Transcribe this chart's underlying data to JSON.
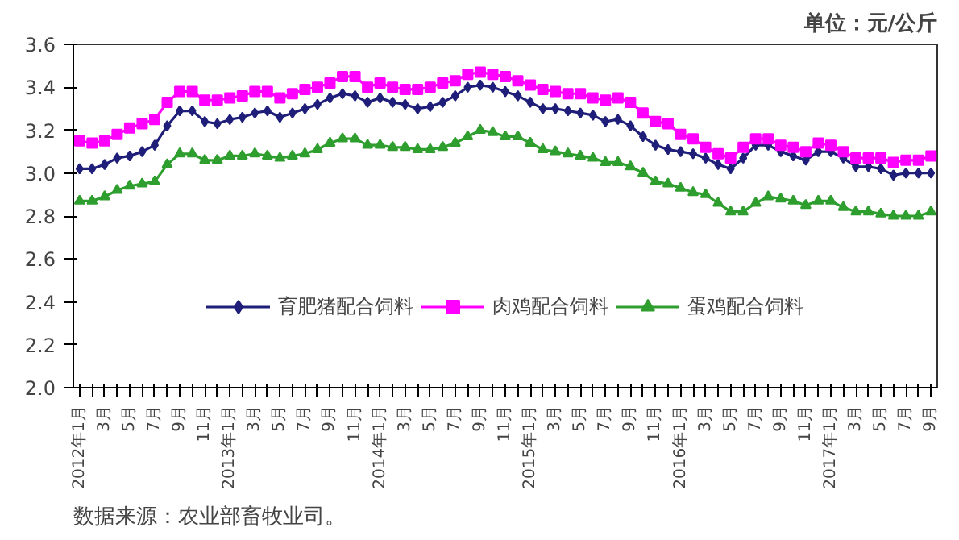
{
  "chart_data": {
    "type": "line",
    "categories": [
      "2012年1月",
      null,
      "3月",
      null,
      "5月",
      null,
      "7月",
      null,
      "9月",
      null,
      "11月",
      null,
      "2013年1月",
      null,
      "3月",
      null,
      "5月",
      null,
      "7月",
      null,
      "9月",
      null,
      "11月",
      null,
      "2014年1月",
      null,
      "3月",
      null,
      "5月",
      null,
      "7月",
      null,
      "9月",
      null,
      "11月",
      null,
      "2015年1月",
      null,
      "3月",
      null,
      "5月",
      null,
      "7月",
      null,
      "9月",
      null,
      "11月",
      null,
      "2016年1月",
      null,
      "3月",
      null,
      "5月",
      null,
      "7月",
      null,
      "9月",
      null,
      "11月",
      null,
      "2017年1月",
      null,
      "3月",
      null,
      "5月",
      null,
      "7月",
      null,
      "9月"
    ],
    "series": [
      {
        "name": "育肥猪配合饲料",
        "color": "#1f1f7a",
        "marker": "diamond",
        "values": [
          3.02,
          3.02,
          3.04,
          3.07,
          3.08,
          3.1,
          3.13,
          3.22,
          3.29,
          3.29,
          3.24,
          3.23,
          3.25,
          3.26,
          3.28,
          3.29,
          3.26,
          3.28,
          3.3,
          3.32,
          3.35,
          3.37,
          3.36,
          3.33,
          3.35,
          3.33,
          3.32,
          3.3,
          3.31,
          3.33,
          3.36,
          3.4,
          3.41,
          3.4,
          3.38,
          3.36,
          3.33,
          3.3,
          3.3,
          3.29,
          3.28,
          3.27,
          3.24,
          3.25,
          3.22,
          3.17,
          3.13,
          3.11,
          3.1,
          3.09,
          3.07,
          3.04,
          3.02,
          3.07,
          3.13,
          3.13,
          3.1,
          3.08,
          3.06,
          3.1,
          3.1,
          3.07,
          3.03,
          3.03,
          3.02,
          2.99,
          3.0,
          3.0,
          3.0
        ]
      },
      {
        "name": "肉鸡配合饲料",
        "color": "#ff00ff",
        "marker": "square",
        "values": [
          3.15,
          3.14,
          3.15,
          3.18,
          3.21,
          3.23,
          3.25,
          3.33,
          3.38,
          3.38,
          3.34,
          3.34,
          3.35,
          3.36,
          3.38,
          3.38,
          3.35,
          3.37,
          3.39,
          3.4,
          3.42,
          3.45,
          3.45,
          3.4,
          3.42,
          3.4,
          3.39,
          3.39,
          3.4,
          3.42,
          3.43,
          3.46,
          3.47,
          3.46,
          3.45,
          3.43,
          3.41,
          3.39,
          3.38,
          3.37,
          3.37,
          3.35,
          3.34,
          3.35,
          3.33,
          3.28,
          3.24,
          3.23,
          3.18,
          3.16,
          3.12,
          3.09,
          3.07,
          3.12,
          3.16,
          3.16,
          3.13,
          3.12,
          3.1,
          3.14,
          3.13,
          3.1,
          3.07,
          3.07,
          3.07,
          3.05,
          3.06,
          3.06,
          3.08
        ]
      },
      {
        "name": "蛋鸡配合饲料",
        "color": "#2e9e2e",
        "marker": "triangle",
        "values": [
          2.87,
          2.87,
          2.89,
          2.92,
          2.94,
          2.95,
          2.96,
          3.04,
          3.09,
          3.09,
          3.06,
          3.06,
          3.08,
          3.08,
          3.09,
          3.08,
          3.07,
          3.08,
          3.09,
          3.11,
          3.14,
          3.16,
          3.16,
          3.13,
          3.13,
          3.12,
          3.12,
          3.11,
          3.11,
          3.12,
          3.14,
          3.17,
          3.2,
          3.19,
          3.17,
          3.17,
          3.14,
          3.11,
          3.1,
          3.09,
          3.08,
          3.07,
          3.05,
          3.05,
          3.03,
          3.0,
          2.96,
          2.95,
          2.93,
          2.91,
          2.9,
          2.86,
          2.82,
          2.82,
          2.86,
          2.89,
          2.88,
          2.87,
          2.85,
          2.87,
          2.87,
          2.84,
          2.82,
          2.82,
          2.81,
          2.8,
          2.8,
          2.8,
          2.82
        ]
      }
    ],
    "ylim": [
      2.0,
      3.6
    ],
    "yticks": [
      {
        "value": 2.0,
        "label": "2.0"
      },
      {
        "value": 2.2,
        "label": "2.2"
      },
      {
        "value": 2.4,
        "label": "2.4"
      },
      {
        "value": 2.6,
        "label": "2.6"
      },
      {
        "value": 2.8,
        "label": "2.8"
      },
      {
        "value": 3.0,
        "label": "3.0"
      },
      {
        "value": 3.2,
        "label": "3.2"
      },
      {
        "value": 3.4,
        "label": "3.4"
      },
      {
        "value": 3.6,
        "label": "3.6"
      }
    ],
    "grid": false,
    "legend": "bottom",
    "annotations": [
      "单位：元/公斤",
      "数据来源：农业部畜牧业司。"
    ]
  }
}
